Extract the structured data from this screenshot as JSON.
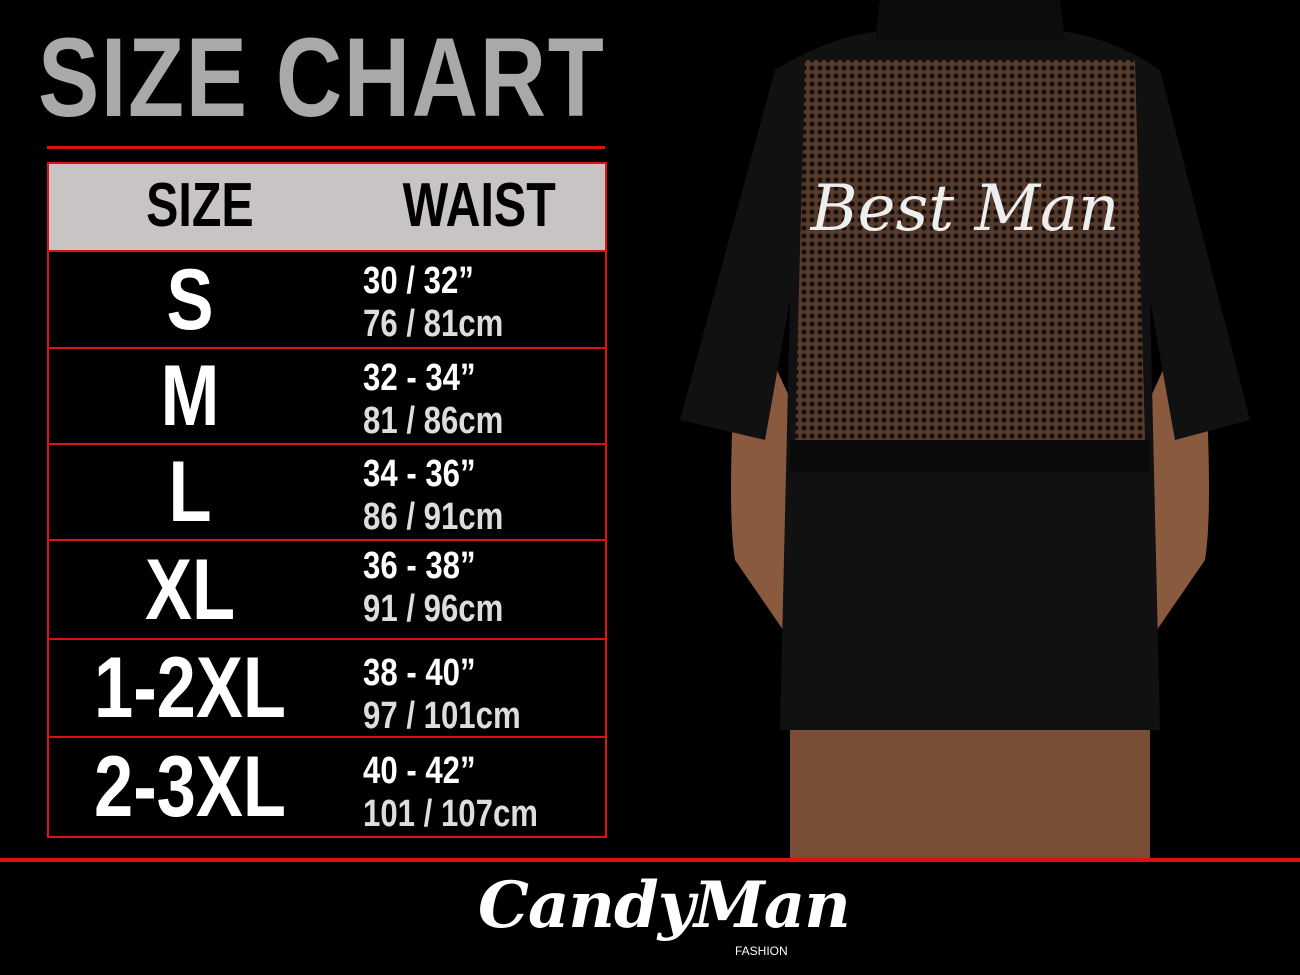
{
  "title": "SIZE CHART",
  "table": {
    "headers": [
      "SIZE",
      "WAIST"
    ],
    "rows": [
      {
        "size": "S",
        "in": "30 / 32”",
        "cm": "76 / 81cm"
      },
      {
        "size": "M",
        "in": "32 - 34”",
        "cm": "81 / 86cm"
      },
      {
        "size": "L",
        "in": "34 - 36”",
        "cm": "86 / 91cm"
      },
      {
        "size": "XL",
        "in": "36 - 38”",
        "cm": "91 / 96cm"
      },
      {
        "size": "1-2XL",
        "in": "38 - 40”",
        "cm": "97 / 101cm"
      },
      {
        "size": "2-3XL",
        "in": "40 - 42”",
        "cm": "101 / 107cm"
      }
    ]
  },
  "product": {
    "print_text": "Best Man"
  },
  "brand": {
    "name": "CandyMan",
    "sub": "FASHION"
  },
  "colors": {
    "accent": "#dd1111",
    "header_bg": "#c8c4c4",
    "title": "#a9a9a9"
  }
}
